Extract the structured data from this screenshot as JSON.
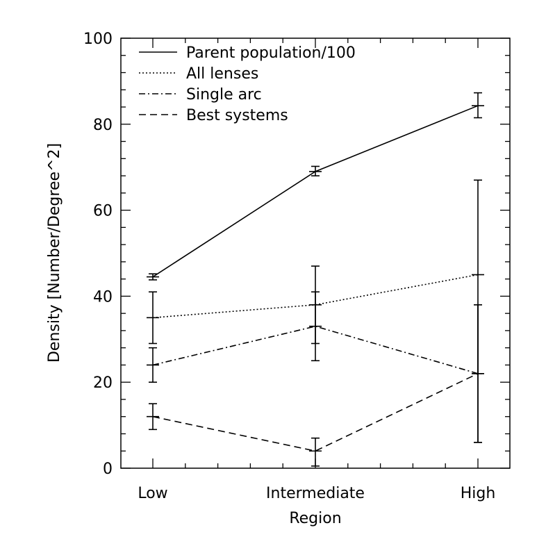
{
  "chart_data": {
    "type": "line",
    "xlabel": "Region",
    "ylabel": "Density [Number/Degree^2]",
    "categories": [
      "Low",
      "Intermediate",
      "High"
    ],
    "ylim": [
      0,
      100
    ],
    "yticks": [
      "0",
      "20",
      "40",
      "60",
      "80",
      "100"
    ],
    "grid": false,
    "legend_position": "top-left",
    "series": [
      {
        "name": "Parent population/100",
        "dash": "solid",
        "values": [
          44.5,
          69,
          84.3
        ],
        "err_low": [
          43.8,
          68,
          81.5
        ],
        "err_high": [
          45.2,
          70.2,
          87.3
        ]
      },
      {
        "name": "All lenses",
        "dash": "dotted",
        "values": [
          35,
          38,
          45
        ],
        "err_low": [
          29,
          29,
          22
        ],
        "err_high": [
          41,
          47,
          67
        ]
      },
      {
        "name": "Single arc",
        "dash": "dashdot",
        "values": [
          24,
          33,
          22
        ],
        "err_low": [
          20,
          25,
          6
        ],
        "err_high": [
          28,
          41,
          38
        ]
      },
      {
        "name": "Best systems",
        "dash": "dashed",
        "values": [
          12,
          4,
          22
        ],
        "err_low": [
          9,
          0.5,
          6
        ],
        "err_high": [
          15,
          7,
          38
        ]
      }
    ]
  }
}
